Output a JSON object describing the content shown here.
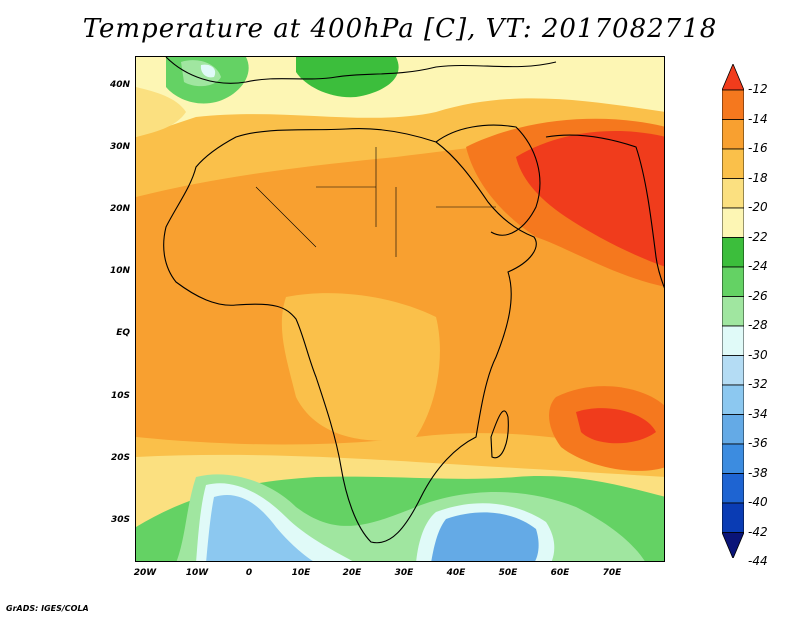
{
  "title": "Temperature at 400hPa [C], VT: 2017082718",
  "footer": "GrADS: IGES/COLA",
  "map": {
    "variable": "Temperature at 400hPa",
    "units": "C",
    "valid_time": "2017082718",
    "lat_labels": [
      "40N",
      "30N",
      "20N",
      "10N",
      "EQ",
      "10S",
      "20S",
      "30S"
    ],
    "lon_labels": [
      "20W",
      "10W",
      "0",
      "10E",
      "20E",
      "30E",
      "40E",
      "50E",
      "60E",
      "70E"
    ],
    "extent": {
      "lon_min": -22,
      "lon_max": 80,
      "lat_min": -37,
      "lat_max": 45
    }
  },
  "colorbar": {
    "labels": [
      "-12",
      "-14",
      "-16",
      "-18",
      "-20",
      "-22",
      "-24",
      "-26",
      "-28",
      "-30",
      "-32",
      "-34",
      "-36",
      "-38",
      "-40",
      "-42",
      "-44"
    ],
    "colors": [
      "#f03c1c",
      "#f5781e",
      "#f8a030",
      "#fac04a",
      "#fbe080",
      "#fdf6b4",
      "#3cbe3c",
      "#64d264",
      "#a0e6a0",
      "#e0faf8",
      "#b4dcf4",
      "#8cc8f0",
      "#64aae6",
      "#3c8ce0",
      "#1e64d2",
      "#0a3cb4",
      "#0a1478"
    ]
  }
}
